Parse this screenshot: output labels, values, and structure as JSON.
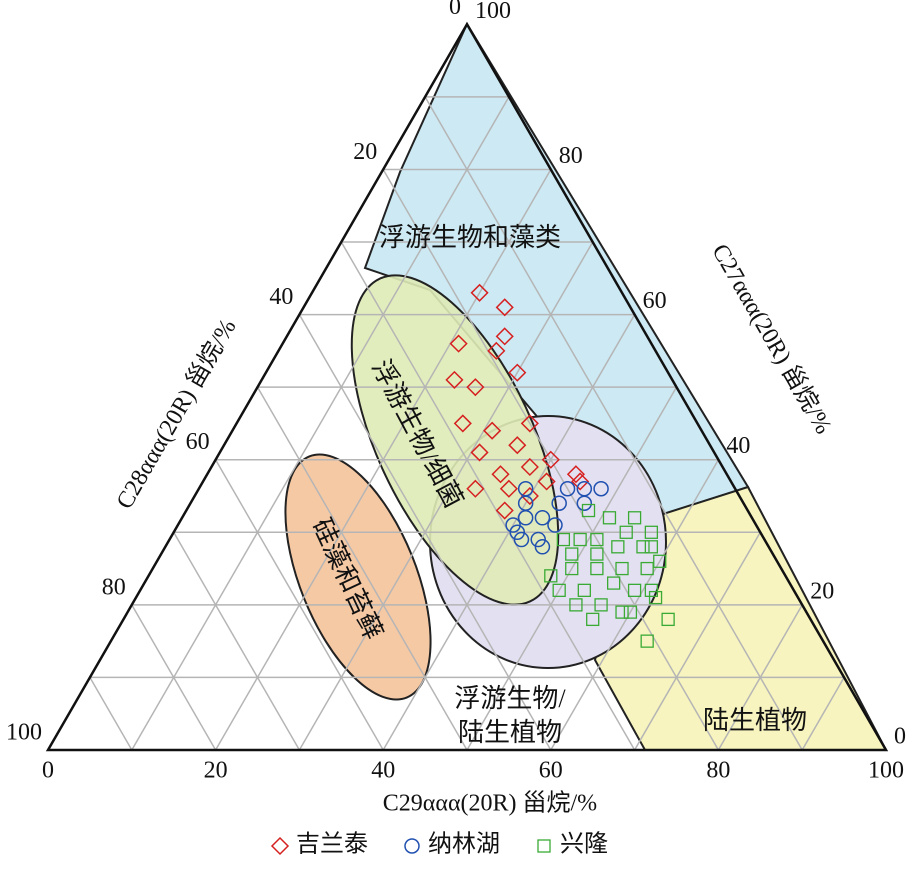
{
  "chart_data": {
    "type": "ternary",
    "bottom_axis_label": "C29ααα(20R) 甾烷/%",
    "right_axis_label": "C27ααα(20R) 甾烷/%",
    "left_axis_label": "C28ααα(20R) 甾烷/%",
    "ticks": [
      0,
      20,
      40,
      60,
      80,
      100
    ],
    "grid_values": [
      10,
      20,
      30,
      40,
      50,
      60,
      70,
      80,
      90
    ],
    "grid": true,
    "regions": [
      {
        "name": "浮游生物和藻类",
        "color": "#cde9f3"
      },
      {
        "name": "陆生植物",
        "color": "#f7f4bf"
      },
      {
        "name": "浮游生物/陆生植物",
        "color": "#e3e1f1"
      },
      {
        "name": "浮游生物/细菌",
        "color": "#dfebb6"
      },
      {
        "name": "硅藻和苔藓",
        "color": "#f6c9a5"
      }
    ],
    "series": [
      {
        "name": "吉兰泰",
        "color": "#d62020",
        "marker": "diamond",
        "values": [
          [
            20,
            63,
            17
          ],
          [
            24,
            61,
            15
          ],
          [
            26,
            57,
            17
          ],
          [
            21,
            56,
            23
          ],
          [
            26,
            55,
            19
          ],
          [
            30,
            52,
            18
          ],
          [
            23,
            51,
            26
          ],
          [
            26,
            50,
            24
          ],
          [
            27,
            45,
            28
          ],
          [
            35,
            45,
            20
          ],
          [
            31,
            44,
            25
          ],
          [
            35,
            42,
            23
          ],
          [
            31,
            41,
            28
          ],
          [
            40,
            40,
            20
          ],
          [
            35,
            38,
            27
          ],
          [
            38,
            39,
            23
          ],
          [
            41,
            37,
            22
          ],
          [
            33,
            36,
            31
          ],
          [
            37,
            36,
            27
          ],
          [
            44,
            38,
            18
          ],
          [
            45,
            37,
            18
          ],
          [
            38,
            33,
            29
          ],
          [
            40,
            35,
            25
          ]
        ]
      },
      {
        "name": "纳林湖",
        "color": "#2050b0",
        "marker": "circle",
        "values": [
          [
            39,
            36,
            25
          ],
          [
            40,
            34,
            26
          ],
          [
            40,
            31,
            29
          ],
          [
            41,
            32,
            27
          ],
          [
            43,
            32,
            25
          ],
          [
            44,
            34,
            22
          ],
          [
            44,
            36,
            20
          ],
          [
            46,
            36,
            18
          ],
          [
            47,
            34,
            19
          ],
          [
            48,
            36,
            16
          ],
          [
            42,
            29,
            29
          ],
          [
            45,
            28,
            27
          ],
          [
            41,
            30,
            29
          ],
          [
            45,
            31,
            24
          ],
          [
            44,
            29,
            27
          ]
        ]
      },
      {
        "name": "兴隆",
        "color": "#3aaa35",
        "marker": "square",
        "values": [
          [
            48,
            33,
            19
          ],
          [
            51,
            32,
            17
          ],
          [
            54,
            32,
            14
          ],
          [
            47,
            29,
            24
          ],
          [
            49,
            29,
            22
          ],
          [
            51,
            29,
            20
          ],
          [
            54,
            30,
            16
          ],
          [
            57,
            30,
            13
          ],
          [
            49,
            27,
            24
          ],
          [
            52,
            27,
            21
          ],
          [
            54,
            28,
            18
          ],
          [
            57,
            28,
            15
          ],
          [
            58,
            28,
            14
          ],
          [
            48,
            24,
            28
          ],
          [
            50,
            25,
            25
          ],
          [
            53,
            25,
            22
          ],
          [
            56,
            25,
            19
          ],
          [
            59,
            25,
            16
          ],
          [
            60,
            26,
            14
          ],
          [
            50,
            22,
            28
          ],
          [
            53,
            22,
            25
          ],
          [
            56,
            23,
            21
          ],
          [
            59,
            22,
            19
          ],
          [
            61,
            22,
            17
          ],
          [
            53,
            20,
            27
          ],
          [
            56,
            20,
            24
          ],
          [
            59,
            19,
            22
          ],
          [
            62,
            21,
            17
          ],
          [
            56,
            18,
            26
          ],
          [
            60,
            19,
            21
          ],
          [
            65,
            18,
            17
          ],
          [
            64,
            15,
            21
          ]
        ]
      }
    ]
  }
}
